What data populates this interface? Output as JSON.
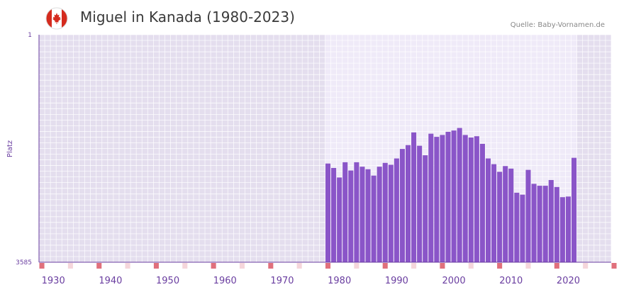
{
  "title": "Miguel in Kanada (1980-2023)",
  "source": "Quelle: Baby-Vornamen.de",
  "flag_icon": "canada-flag-icon",
  "colors": {
    "bar": "#8a55c8",
    "accent": "#6a3ea0",
    "flag_red": "#d52b1e",
    "marker": "#e0707c"
  },
  "chart_data": {
    "type": "bar",
    "title": "Miguel in Kanada (1980-2023)",
    "xlabel": "",
    "ylabel": "Platz",
    "ylim": [
      3585,
      1
    ],
    "ytick_labels": [
      "1",
      "3585"
    ],
    "xlim": [
      1928,
      2028
    ],
    "xtick_labels": [
      "1930",
      "1940",
      "1950",
      "1960",
      "1970",
      "1980",
      "1990",
      "2000",
      "2010",
      "2020"
    ],
    "xticks": [
      1930,
      1940,
      1950,
      1960,
      1970,
      1980,
      1990,
      2000,
      2010,
      2020
    ],
    "highlight_range": [
      1978,
      2022
    ],
    "x": [
      1978,
      1979,
      1980,
      1981,
      1982,
      1983,
      1984,
      1985,
      1986,
      1987,
      1988,
      1989,
      1990,
      1991,
      1992,
      1993,
      1994,
      1995,
      1996,
      1997,
      1998,
      1999,
      2000,
      2001,
      2002,
      2003,
      2004,
      2005,
      2006,
      2007,
      2008,
      2009,
      2010,
      2011,
      2012,
      2013,
      2014,
      2015,
      2016,
      2017,
      2018,
      2019,
      2020,
      2021
    ],
    "values": [
      2030,
      2100,
      2250,
      2010,
      2140,
      2010,
      2080,
      2120,
      2220,
      2080,
      2020,
      2050,
      1950,
      1800,
      1740,
      1540,
      1750,
      1900,
      1560,
      1610,
      1580,
      1530,
      1510,
      1470,
      1580,
      1620,
      1600,
      1720,
      1950,
      2040,
      2160,
      2070,
      2110,
      2490,
      2520,
      2130,
      2350,
      2380,
      2380,
      2290,
      2400,
      2560,
      2550,
      1940
    ]
  }
}
